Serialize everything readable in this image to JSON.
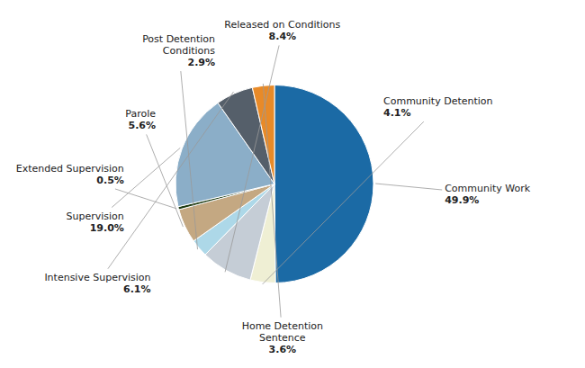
{
  "chart_data": {
    "type": "pie",
    "categories": [
      "Community Work",
      "Community Detention",
      "Released on Conditions",
      "Post Detention\nConditions",
      "Parole",
      "Extended Supervision",
      "Supervision",
      "Intensive Supervision",
      "Home Detention\nSentence"
    ],
    "values": [
      49.9,
      4.1,
      8.4,
      2.9,
      5.6,
      0.5,
      19.0,
      6.1,
      3.6
    ],
    "value_labels": [
      "49.9%",
      "4.1%",
      "8.4%",
      "2.9%",
      "5.6%",
      "0.5%",
      "19.0%",
      "6.1%",
      "3.6%"
    ],
    "colors": [
      "#1B6AA5",
      "#EFEFD4",
      "#C5CDD6",
      "#ADD8E8",
      "#C4A882",
      "#1C3A10",
      "#8BAEC8",
      "#555F6A",
      "#E88A28"
    ],
    "data_labels": true
  }
}
